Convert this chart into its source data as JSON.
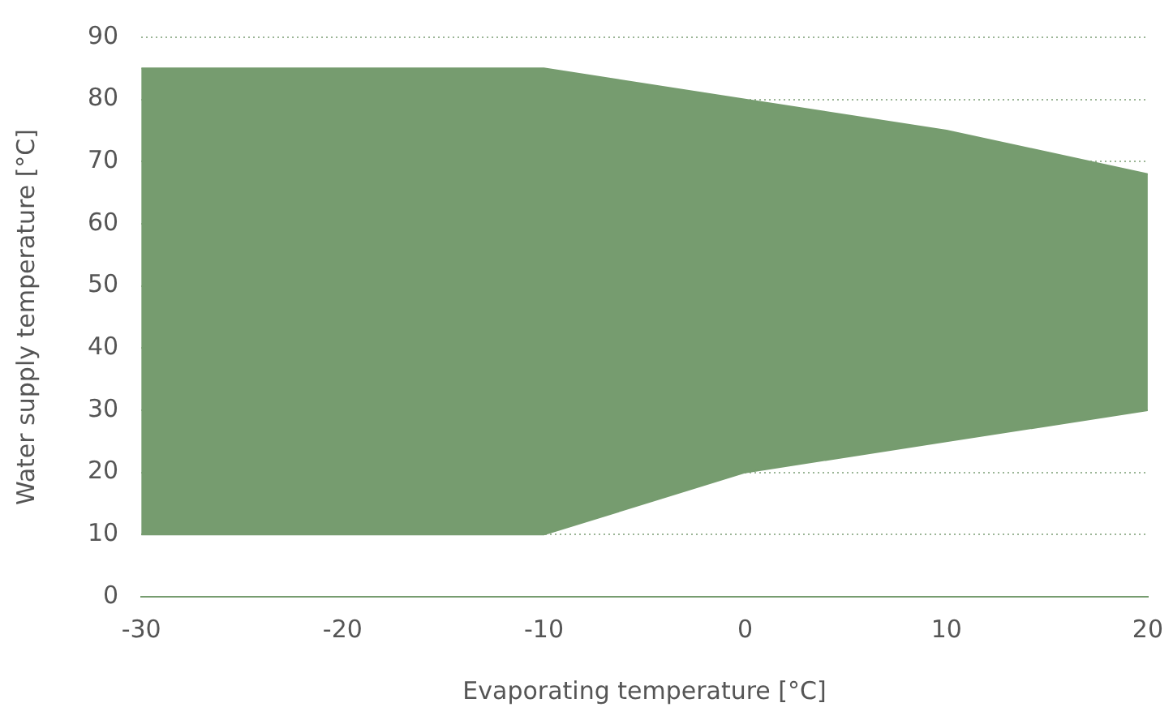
{
  "chart_data": {
    "type": "area",
    "xlabel": "Evaporating temperature [°C]",
    "ylabel": "Water supply temperature [°C]",
    "x": [
      -30,
      -10,
      0,
      10,
      20
    ],
    "series": [
      {
        "type": "line",
        "color": "#769c6f",
        "values": [
          10,
          10,
          20,
          25,
          30
        ]
      },
      {
        "color": "#769c6f",
        "values": [
          85,
          85,
          80,
          75,
          68
        ]
      }
    ],
    "xlim": [
      -30,
      20
    ],
    "xticks": [
      -30,
      -20,
      -10,
      0,
      10,
      20
    ],
    "ylim": [
      0,
      90
    ],
    "yticks": [
      0,
      10,
      20,
      30,
      40,
      50,
      60,
      70,
      80,
      90
    ],
    "grid": "y",
    "legend": false
  }
}
